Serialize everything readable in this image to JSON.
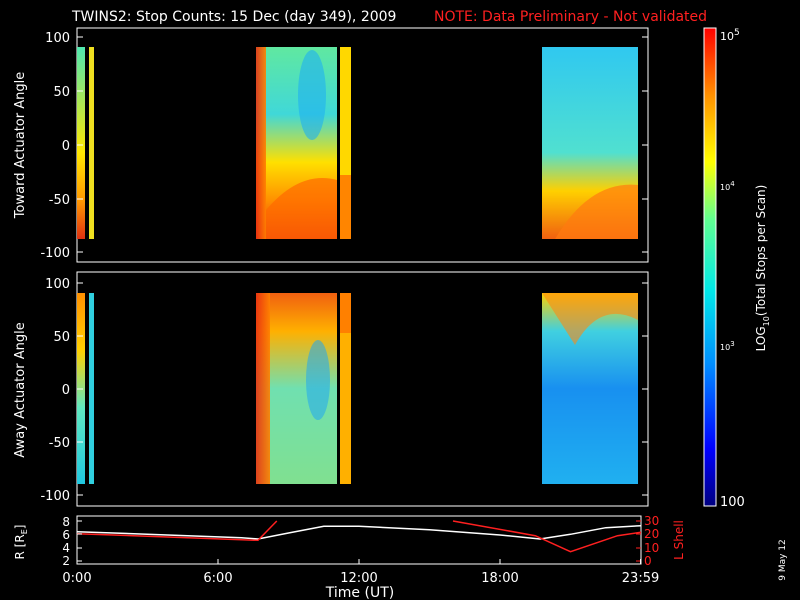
{
  "header": {
    "title": "TWINS2: Stop Counts: 15 Dec (day 349), 2009",
    "note": "NOTE: Data Preliminary - Not validated"
  },
  "footer": {
    "stamp": "9 May 12"
  },
  "chart_data": [
    {
      "type": "heatmap",
      "ylabel": "Toward Actuator Angle",
      "ylim": [
        -110,
        110
      ],
      "yticks": [
        100,
        50,
        0,
        -50,
        -100
      ],
      "data_blocks_hours": [
        [
          0.0,
          0.15
        ],
        [
          0.15,
          0.2
        ],
        [
          7.5,
          10.3
        ],
        [
          10.4,
          11.0
        ],
        [
          19.8,
          23.8
        ]
      ],
      "colors": [
        "#e83810",
        "#ff7000",
        "#ffb000",
        "#ffee00",
        "#80ff60",
        "#20d8e0",
        "#1890ff"
      ]
    },
    {
      "type": "heatmap",
      "ylabel": "Away Actuator Angle",
      "ylim": [
        -110,
        110
      ],
      "yticks": [
        100,
        50,
        0,
        -50,
        -100
      ],
      "data_blocks_hours": [
        [
          0.0,
          0.15
        ],
        [
          0.15,
          0.2
        ],
        [
          7.5,
          10.3
        ],
        [
          10.4,
          11.0
        ],
        [
          19.8,
          23.8
        ]
      ],
      "colors": [
        "#e83810",
        "#ff7000",
        "#ffb000",
        "#ffee00",
        "#80ff60",
        "#20d8e0",
        "#1890ff"
      ]
    },
    {
      "type": "line",
      "ylabel_left": "R [R",
      "ylabel_left_sub": "E",
      "ylabel_left_end": "]",
      "ylabel_right": "L Shell",
      "yticks_left": [
        2,
        4,
        6,
        8
      ],
      "yticks_right": [
        0,
        10,
        20,
        30
      ],
      "xlabel": "Time (UT)",
      "xticks": [
        "0:00",
        "6:00",
        "12:00",
        "18:00",
        "23:59"
      ],
      "xtick_hours": [
        0,
        6,
        12,
        18,
        23.98
      ],
      "series": [
        {
          "color": "#ffffff",
          "x": [
            0,
            7.0,
            7.7,
            9.0,
            10.5,
            12.0,
            15.0,
            18.0,
            19.7,
            21.0,
            22.5,
            24.0
          ],
          "y": [
            6.4,
            5.5,
            5.3,
            6.2,
            7.2,
            7.2,
            6.7,
            5.9,
            5.3,
            6.0,
            7.0,
            7.3
          ]
        },
        {
          "color": "#ff2020",
          "segments": [
            {
              "x": [
                0,
                7.7,
                8.5
              ],
              "y": [
                6.1,
                5.1,
                8.0
              ]
            },
            {
              "x": [
                16.0,
                19.5,
                21.0,
                23.0,
                24.0
              ],
              "y": [
                8.0,
                5.8,
                3.4,
                5.8,
                6.3
              ]
            }
          ]
        }
      ]
    }
  ],
  "colorbar": {
    "label_main": "LOG",
    "label_sub": "10",
    "label_rest": "(Total Stops per Scan)",
    "tick_top": "10",
    "tick_top_exp": "5",
    "tick_mid1": "10",
    "tick_mid1_exp": "4",
    "tick_mid2": "10",
    "tick_mid2_exp": "3",
    "tick_bottom": "100"
  }
}
